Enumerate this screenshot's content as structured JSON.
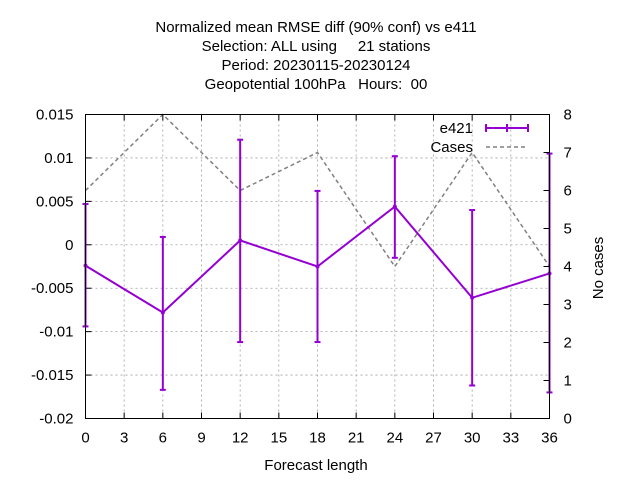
{
  "chart_data": {
    "type": "line",
    "title_lines": [
      "Normalized mean RMSE diff (90% conf) vs e411",
      "Selection: ALL using     21 stations",
      "Period: 20230115-20230124",
      "Geopotential 100hPa   Hours:  00"
    ],
    "xlabel": "Forecast length",
    "y2label": "No cases",
    "xlim": [
      0,
      36
    ],
    "ylim": [
      -0.02,
      0.015
    ],
    "y2lim": [
      0,
      8
    ],
    "xticks": [
      0,
      3,
      6,
      9,
      12,
      15,
      18,
      21,
      24,
      27,
      30,
      33,
      36
    ],
    "yticks": [
      -0.02,
      -0.015,
      -0.01,
      -0.005,
      0,
      0.005,
      0.01,
      0.015
    ],
    "ytick_labels": [
      "-0.02",
      "-0.015",
      "-0.01",
      "-0.005",
      "0",
      "0.005",
      "0.01",
      "0.015"
    ],
    "y2ticks": [
      0,
      1,
      2,
      3,
      4,
      5,
      6,
      7,
      8
    ],
    "grid": true,
    "legend_position": "top-right",
    "series": [
      {
        "name": "e421",
        "color": "#9400d3",
        "style": "line-errorbars",
        "axis": "y",
        "x": [
          0,
          6,
          12,
          18,
          24,
          30,
          36
        ],
        "y": [
          -0.0024,
          -0.0078,
          0.0005,
          -0.0025,
          0.0044,
          -0.0061,
          -0.0033
        ],
        "ylow": [
          -0.0094,
          -0.0167,
          -0.0112,
          -0.0112,
          -0.0015,
          -0.0162,
          -0.017
        ],
        "yhigh": [
          0.0047,
          0.0009,
          0.0121,
          0.0062,
          0.0102,
          0.004,
          0.0105
        ]
      },
      {
        "name": "Cases",
        "color": "#808080",
        "style": "dashed",
        "axis": "y2",
        "x": [
          0,
          6,
          12,
          18,
          24,
          30,
          36
        ],
        "y": [
          6,
          8,
          6,
          7,
          4,
          7,
          4
        ]
      }
    ]
  }
}
